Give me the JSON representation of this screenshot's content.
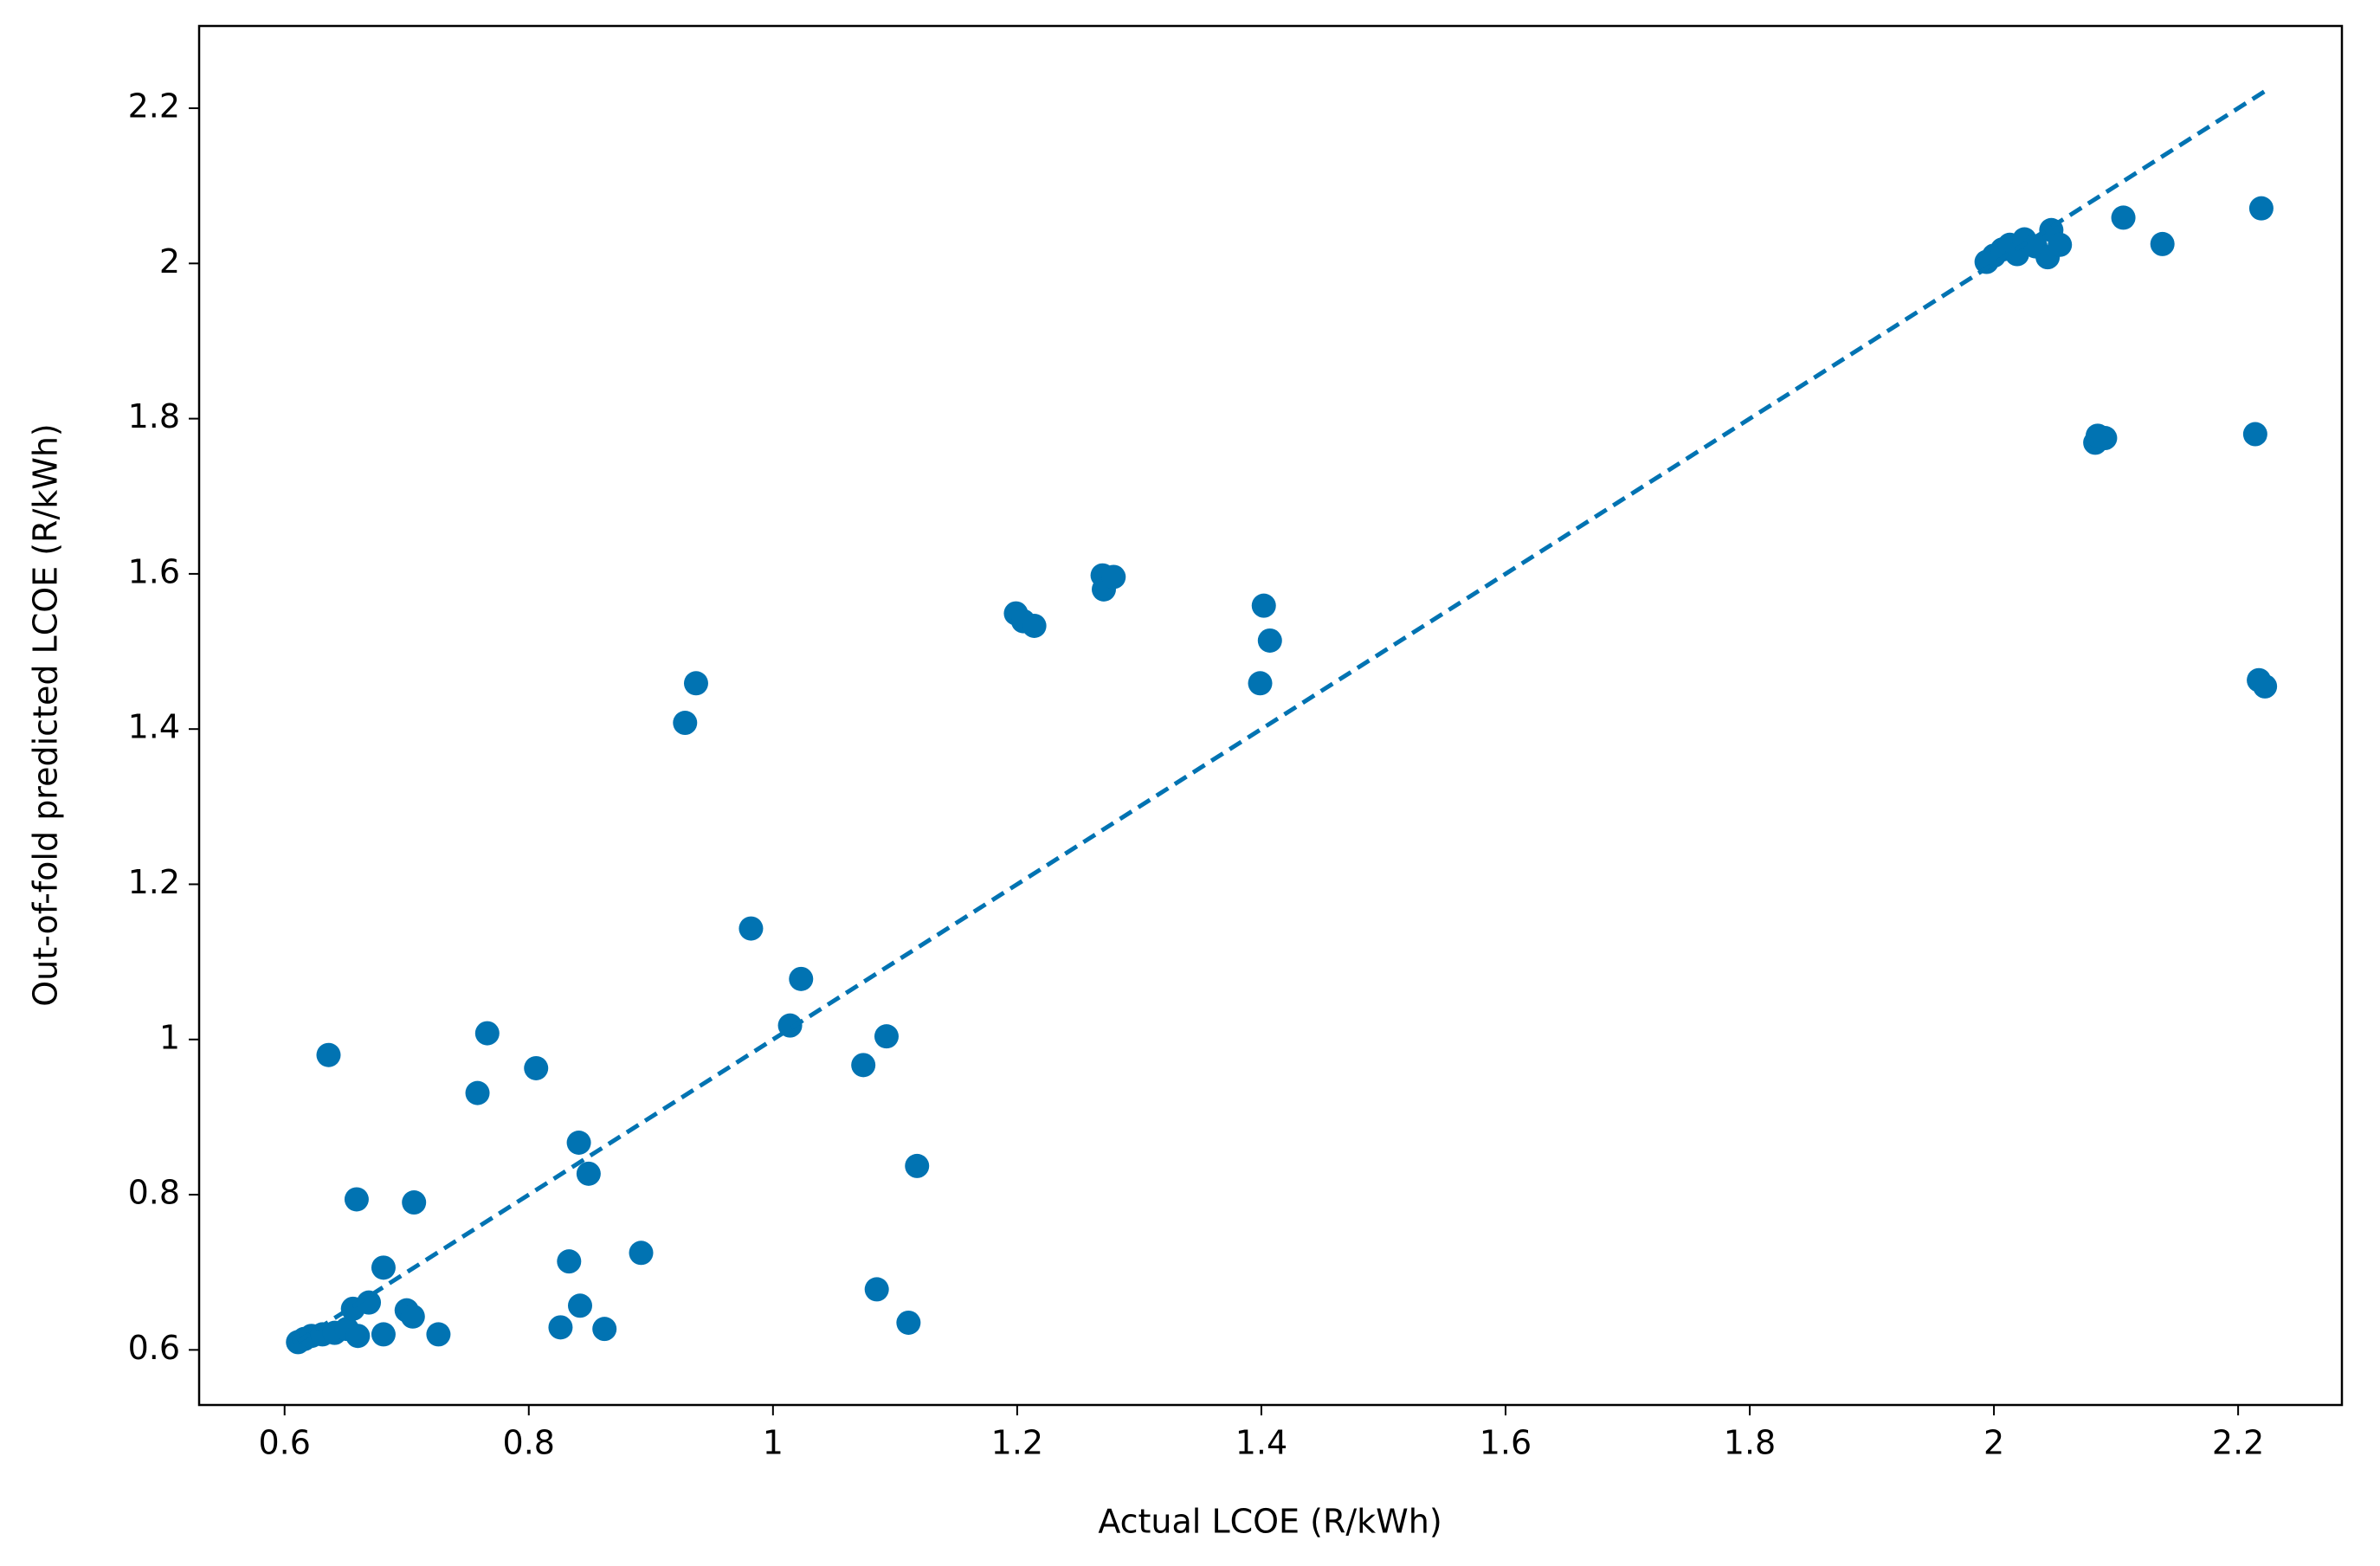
{
  "chart_data": {
    "type": "scatter",
    "xlabel": "Actual LCOE (R/kWh)",
    "ylabel": "Out-of-fold predicted LCOE (R/kWh)",
    "xlim": [
      0.53,
      2.285
    ],
    "ylim": [
      0.529,
      2.306
    ],
    "xticks": [
      0.6,
      0.8,
      1.0,
      1.2,
      1.4,
      1.6,
      1.8,
      2.0,
      2.2
    ],
    "yticks": [
      0.6,
      0.8,
      1.0,
      1.2,
      1.4,
      1.6,
      1.8,
      2.0,
      2.2
    ],
    "series": [
      {
        "color": "#0173b2",
        "x": [
          0.611,
          0.616,
          0.622,
          0.631,
          0.641,
          0.651,
          0.66,
          0.656,
          0.669,
          0.636,
          0.659,
          0.681,
          0.681,
          0.7,
          0.705,
          0.706,
          0.726,
          0.758,
          0.766,
          0.806,
          0.826,
          0.833,
          0.841,
          0.842,
          0.849,
          0.862,
          0.892,
          0.928,
          0.937,
          0.982,
          1.014,
          1.023,
          1.074,
          1.085,
          1.093,
          1.111,
          1.118,
          1.199,
          1.205,
          1.214,
          1.27,
          1.271,
          1.279,
          1.399,
          1.402,
          1.407,
          1.994,
          2.0,
          2.007,
          2.013,
          2.019,
          2.025,
          2.034,
          2.044,
          2.047,
          2.054,
          2.106,
          2.138,
          2.083,
          2.085,
          2.091,
          2.214,
          2.219,
          2.217,
          2.222
        ],
        "values": [
          0.61,
          0.614,
          0.618,
          0.62,
          0.622,
          0.627,
          0.618,
          0.653,
          0.661,
          0.98,
          0.794,
          0.706,
          0.62,
          0.651,
          0.643,
          0.79,
          0.62,
          0.931,
          1.008,
          0.963,
          0.629,
          0.714,
          0.867,
          0.657,
          0.827,
          0.627,
          0.725,
          1.408,
          1.459,
          1.143,
          1.018,
          1.078,
          0.967,
          0.678,
          1.004,
          0.635,
          0.837,
          1.549,
          1.539,
          1.533,
          1.598,
          1.58,
          1.596,
          1.459,
          1.559,
          1.514,
          2.002,
          2.01,
          2.018,
          2.024,
          2.012,
          2.031,
          2.022,
          2.008,
          2.043,
          2.024,
          2.059,
          2.025,
          1.769,
          1.778,
          1.775,
          1.78,
          2.071,
          1.463,
          1.455
        ]
      },
      {
        "color": "#0173b2",
        "style": "dashed",
        "x": [
          0.611,
          2.222
        ],
        "values": [
          0.611,
          2.222
        ]
      }
    ]
  }
}
